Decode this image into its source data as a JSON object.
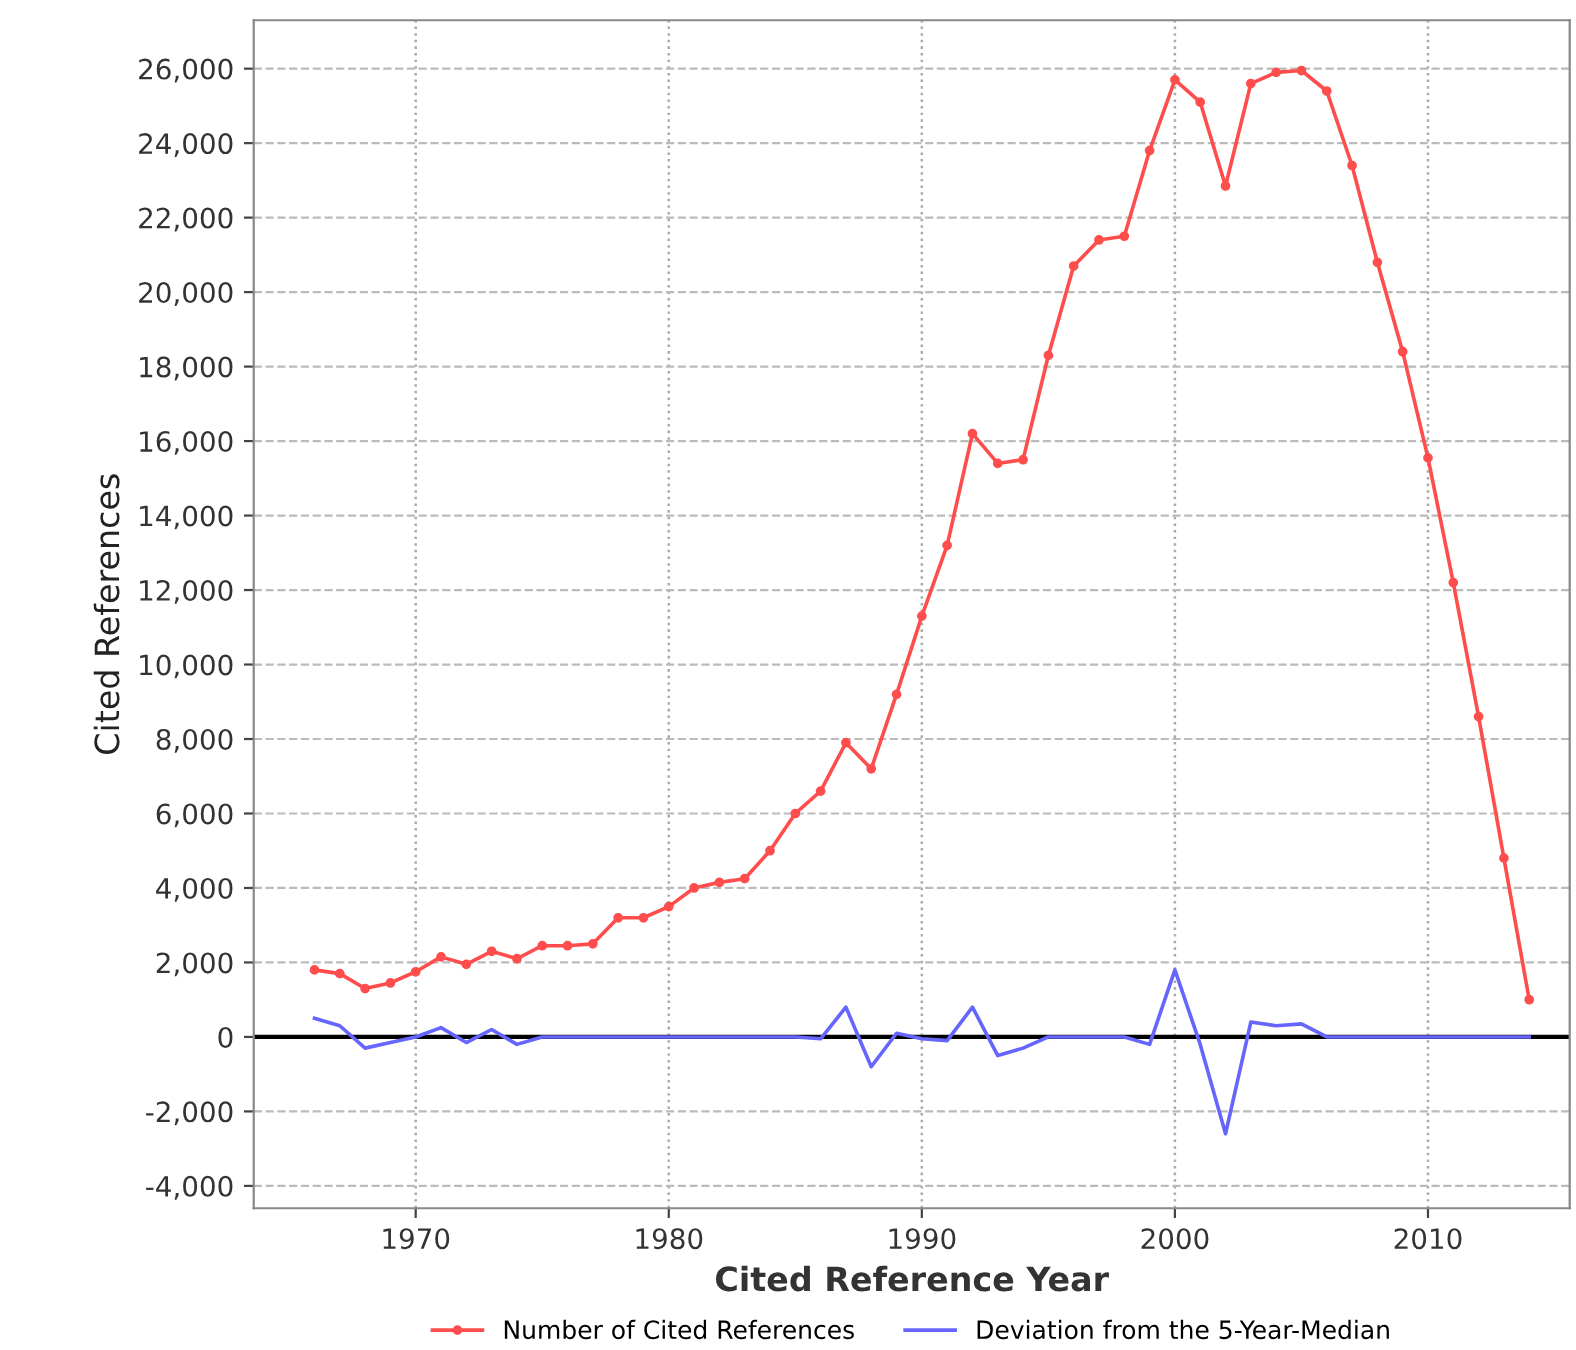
{
  "chart_data": {
    "type": "line",
    "xlabel": "Cited Reference Year",
    "ylabel": "Cited References",
    "x": [
      1966,
      1967,
      1968,
      1969,
      1970,
      1971,
      1972,
      1973,
      1974,
      1975,
      1976,
      1977,
      1978,
      1979,
      1980,
      1981,
      1982,
      1983,
      1984,
      1985,
      1986,
      1987,
      1988,
      1989,
      1990,
      1991,
      1992,
      1993,
      1994,
      1995,
      1996,
      1997,
      1998,
      1999,
      2000,
      2001,
      2002,
      2003,
      2004,
      2005,
      2006,
      2007,
      2008,
      2009,
      2010,
      2011,
      2012,
      2013,
      2014
    ],
    "series": [
      {
        "name": "Number of Cited References",
        "color": "#ff4d4d",
        "marker": "circle",
        "values": [
          1800,
          1700,
          1300,
          1450,
          1750,
          2150,
          1950,
          2300,
          2100,
          2450,
          2450,
          2500,
          3200,
          3200,
          3500,
          4000,
          4150,
          4250,
          5000,
          6000,
          6600,
          7900,
          7200,
          9200,
          11300,
          13200,
          16200,
          15400,
          15500,
          18300,
          20700,
          21400,
          21500,
          23800,
          25700,
          25100,
          22850,
          25600,
          25900,
          25950,
          25400,
          23400,
          20800,
          18400,
          15550,
          12200,
          8600,
          4800,
          1000
        ]
      },
      {
        "name": "Deviation from the 5-Year-Median",
        "color": "#6666ff",
        "marker": "none",
        "values": [
          500,
          300,
          -300,
          -150,
          0,
          250,
          -150,
          200,
          -200,
          0,
          0,
          0,
          0,
          0,
          0,
          0,
          0,
          0,
          0,
          0,
          -50,
          800,
          -800,
          100,
          -50,
          -100,
          800,
          -500,
          -300,
          0,
          0,
          0,
          0,
          -200,
          1800,
          -200,
          -2600,
          400,
          300,
          350,
          0,
          0,
          0,
          0,
          0,
          0,
          0,
          0,
          0
        ]
      }
    ],
    "xlim": [
      1963.6,
      2015.6
    ],
    "xticks": [
      1970,
      1980,
      1990,
      2000,
      2010
    ],
    "ylim": [
      -4600,
      27300
    ],
    "yticks": [
      {
        "value": -4000,
        "label": "-4,000"
      },
      {
        "value": -2000,
        "label": "-2,000"
      },
      0,
      {
        "value": 2000,
        "label": "2,000"
      },
      {
        "value": 4000,
        "label": "4,000"
      },
      {
        "value": 6000,
        "label": "6,000"
      },
      {
        "value": 8000,
        "label": "8,000"
      },
      {
        "value": 10000,
        "label": "10,000"
      },
      {
        "value": 12000,
        "label": "12,000"
      },
      {
        "value": 14000,
        "label": "14,000"
      },
      {
        "value": 16000,
        "label": "16,000"
      },
      {
        "value": 18000,
        "label": "18,000"
      },
      {
        "value": 20000,
        "label": "20,000"
      },
      {
        "value": 22000,
        "label": "22,000"
      },
      {
        "value": 24000,
        "label": "24,000"
      },
      {
        "value": 26000,
        "label": "26,000"
      }
    ],
    "ref_lines": [
      {
        "axis": "y",
        "value": 0,
        "color": "#000000",
        "line_style": "solid"
      }
    ],
    "grid": true,
    "legend": "bottom",
    "line_style": "solid"
  }
}
